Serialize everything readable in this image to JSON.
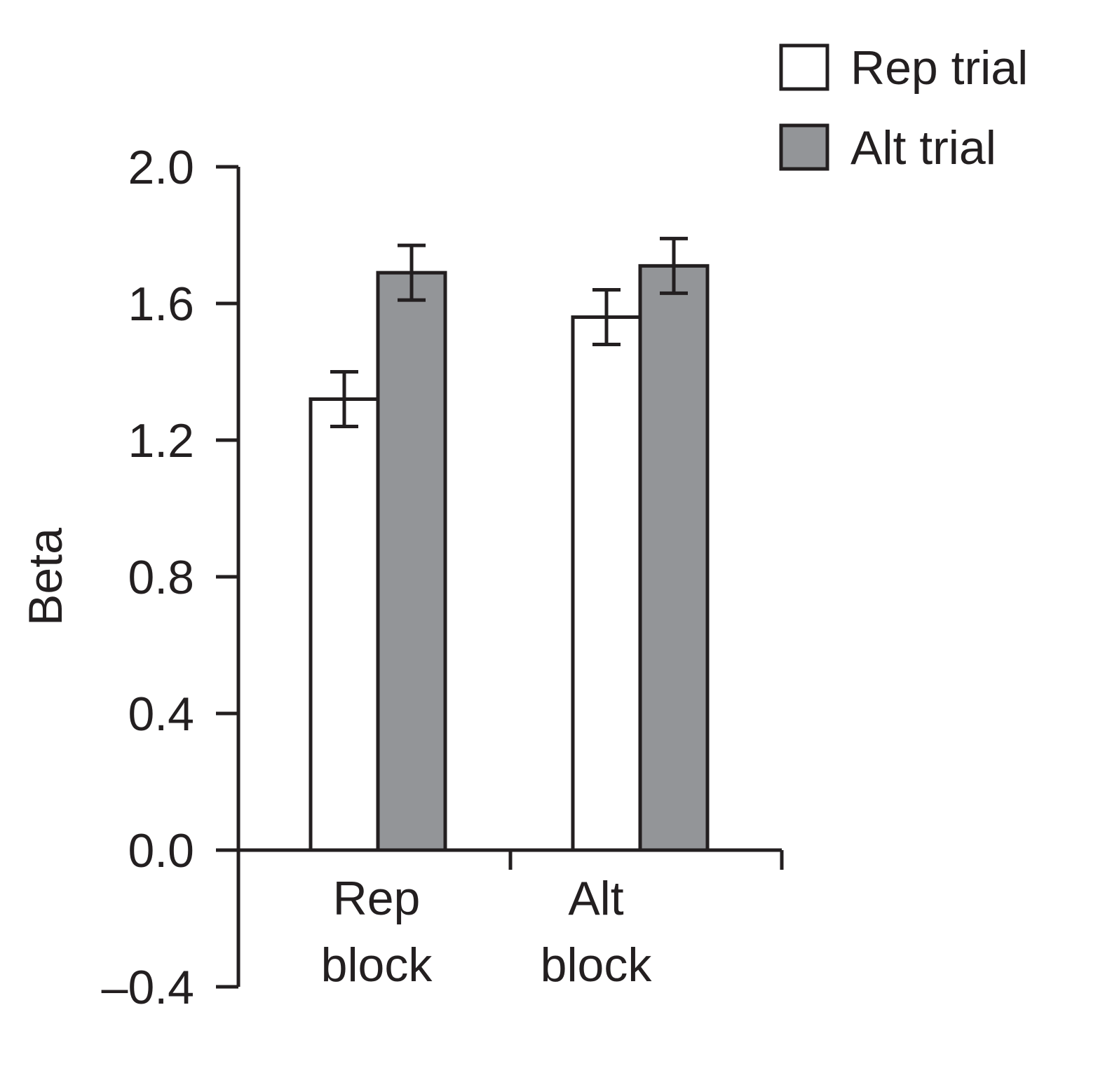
{
  "chart_data": {
    "type": "bar",
    "ylabel": "Beta",
    "xlabel": "",
    "ylim": [
      -0.4,
      2.0
    ],
    "yticks": [
      {
        "value": -0.4,
        "label": "–0.4"
      },
      {
        "value": 0.0,
        "label": "0.0"
      },
      {
        "value": 0.4,
        "label": "0.4"
      },
      {
        "value": 0.8,
        "label": "0.8"
      },
      {
        "value": 1.2,
        "label": "1.2"
      },
      {
        "value": 1.6,
        "label": "1.6"
      },
      {
        "value": 2.0,
        "label": "2.0"
      }
    ],
    "categories": [
      {
        "line1": "Rep",
        "line2": "block"
      },
      {
        "line1": "Alt",
        "line2": "block"
      }
    ],
    "series": [
      {
        "name": "Rep trial",
        "color": "#ffffff",
        "values": [
          1.32,
          1.56
        ],
        "errors": [
          0.08,
          0.08
        ]
      },
      {
        "name": "Alt trial",
        "color": "#939598",
        "values": [
          1.69,
          1.71
        ],
        "errors": [
          0.08,
          0.08
        ]
      }
    ],
    "legend_position": "top-right",
    "grid": false,
    "axis_color": "#231f20"
  }
}
